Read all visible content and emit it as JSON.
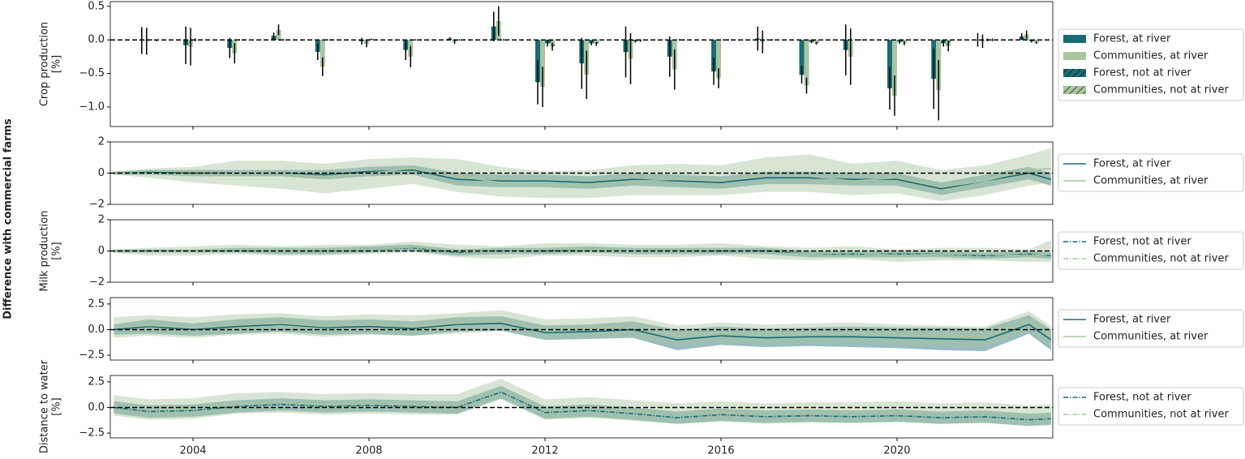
{
  "figure": {
    "ylabel": "Difference with commercial farms"
  },
  "chart_data": [
    {
      "type": "bar",
      "ylabel": "Crop production\n[%]",
      "x": [
        2003,
        2004,
        2005,
        2006,
        2007,
        2008,
        2009,
        2010,
        2011,
        2012,
        2013,
        2014,
        2015,
        2016,
        2017,
        2018,
        2019,
        2020,
        2021,
        2022,
        2023
      ],
      "xlim": [
        2002.12,
        2023.54
      ],
      "xticks": [
        2004,
        2008,
        2012,
        2016,
        2020
      ],
      "ylim": [
        -1.29,
        0.57
      ],
      "yticks": [
        {
          "value": 0.5,
          "label": "0.5"
        },
        {
          "value": 0,
          "label": "0.0"
        },
        {
          "value": -0.5,
          "label": "−0.5"
        },
        {
          "value": -1.0,
          "label": "−1.0"
        }
      ],
      "hline": 0,
      "series": [
        {
          "name": "Forest, at river",
          "color": "#1a6b73",
          "hatch": false,
          "values": [
            -0.01,
            -0.08,
            -0.12,
            0.06,
            -0.18,
            -0.02,
            -0.15,
            0.02,
            0.2,
            -0.63,
            -0.35,
            -0.18,
            -0.25,
            -0.47,
            0.02,
            -0.52,
            -0.15,
            -0.72,
            -0.58,
            0.0,
            0.05
          ],
          "errors": [
            0.2,
            0.28,
            0.15,
            0.05,
            0.12,
            0.05,
            0.15,
            0.02,
            0.22,
            0.33,
            0.38,
            0.38,
            0.3,
            0.2,
            0.18,
            0.13,
            0.38,
            0.32,
            0.45,
            0.1,
            0.05
          ]
        },
        {
          "name": "Communities, at river",
          "color": "#a8c5a0",
          "hatch": false,
          "values": [
            -0.02,
            -0.1,
            -0.2,
            0.15,
            -0.4,
            -0.06,
            -0.25,
            -0.03,
            0.28,
            -0.7,
            -0.52,
            -0.28,
            -0.44,
            -0.57,
            -0.03,
            -0.68,
            -0.25,
            -0.83,
            -0.75,
            -0.02,
            0.08
          ],
          "errors": [
            0.2,
            0.28,
            0.15,
            0.08,
            0.14,
            0.05,
            0.16,
            0.03,
            0.22,
            0.3,
            0.36,
            0.38,
            0.3,
            0.15,
            0.17,
            0.12,
            0.42,
            0.3,
            0.45,
            0.1,
            0.06
          ]
        },
        {
          "name": "Forest, not at river",
          "color": "#1a6b73",
          "hatch": true,
          "values": [
            0,
            0,
            0,
            0,
            0,
            0.01,
            0,
            0,
            0,
            -0.05,
            -0.05,
            -0.02,
            0,
            0,
            0,
            -0.03,
            0,
            -0.03,
            -0.05,
            0,
            -0.02
          ],
          "errors": [
            0.01,
            0.02,
            0.01,
            0.01,
            0.01,
            0.01,
            0.01,
            0.01,
            0.01,
            0.05,
            0.03,
            0.02,
            0.01,
            0.01,
            0.01,
            0.02,
            0.01,
            0.03,
            0.05,
            0.02,
            0.02
          ]
        },
        {
          "name": "Communities, not at river",
          "color": "#a8c5a0",
          "hatch": true,
          "values": [
            -0.01,
            0,
            0,
            0,
            0,
            0,
            0,
            0,
            0,
            -0.1,
            -0.06,
            -0.01,
            0,
            0,
            0,
            -0.05,
            0,
            -0.05,
            -0.09,
            0,
            -0.04
          ],
          "errors": [
            0.01,
            0.01,
            0.01,
            0.01,
            0.01,
            0.01,
            0.01,
            0.01,
            0.01,
            0.06,
            0.03,
            0.02,
            0.01,
            0.01,
            0.01,
            0.02,
            0.01,
            0.03,
            0.08,
            0.02,
            0.02
          ]
        }
      ]
    },
    {
      "type": "line",
      "x": [
        2002.2,
        2003,
        2004,
        2005,
        2006,
        2007,
        2008,
        2009,
        2010,
        2011,
        2012,
        2013,
        2014,
        2015,
        2016,
        2017,
        2018,
        2019,
        2020,
        2021,
        2022,
        2023,
        2023.5
      ],
      "xlim": [
        2002.12,
        2023.54
      ],
      "xticks": [
        2004,
        2008,
        2012,
        2016,
        2020
      ],
      "ylim": [
        -2,
        2
      ],
      "yticks": [
        2,
        0,
        {
          "value": -2,
          "label": "−2"
        }
      ],
      "hline": 0,
      "series": [
        {
          "name": "Forest, at river",
          "color": "#1a6b73",
          "linestyle": "solid",
          "values": [
            0,
            0.05,
            0,
            0,
            0,
            -0.1,
            0.1,
            0.2,
            -0.4,
            -0.5,
            -0.5,
            -0.6,
            -0.4,
            -0.5,
            -0.6,
            -0.3,
            -0.3,
            -0.4,
            -0.4,
            -1.0,
            -0.5,
            0,
            -0.4
          ],
          "lower": [
            -0.1,
            -0.1,
            -0.2,
            -0.2,
            -0.2,
            -0.4,
            -0.2,
            -0.1,
            -0.8,
            -0.9,
            -0.9,
            -1.0,
            -0.8,
            -0.9,
            -1.0,
            -0.7,
            -0.7,
            -0.8,
            -0.8,
            -1.4,
            -0.9,
            -0.4,
            -0.8
          ],
          "upper": [
            0.1,
            0.2,
            0.2,
            0.2,
            0.2,
            0.2,
            0.4,
            0.5,
            0,
            -0.1,
            -0.1,
            -0.2,
            0,
            -0.1,
            -0.2,
            0.1,
            0.1,
            0,
            0,
            -0.6,
            -0.1,
            0.4,
            0
          ]
        },
        {
          "name": "Communities, at river",
          "color": "#a8c5a0",
          "linestyle": "solid",
          "values": [
            0,
            0,
            -0.1,
            0,
            0,
            -0.3,
            0,
            0.3,
            -0.2,
            -0.6,
            -0.8,
            -0.7,
            -0.5,
            -0.4,
            -0.5,
            -0.1,
            -0.2,
            -0.5,
            -0.3,
            -0.9,
            -0.5,
            0.2,
            0.3
          ],
          "lower": [
            -0.1,
            -0.3,
            -0.6,
            -0.8,
            -1.0,
            -1.3,
            -1.0,
            -0.7,
            -1.2,
            -1.5,
            -1.6,
            -1.6,
            -1.4,
            -1.4,
            -1.4,
            -1.2,
            -1.2,
            -1.4,
            -1.3,
            -1.8,
            -1.4,
            -0.8,
            -0.6
          ],
          "upper": [
            0.1,
            0.3,
            0.4,
            0.8,
            0.8,
            0.6,
            0.9,
            1.0,
            0.9,
            0.4,
            0.1,
            0.2,
            0.5,
            0.6,
            0.5,
            1.0,
            1.2,
            0.6,
            0.8,
            0.2,
            0.5,
            1.2,
            1.6
          ]
        }
      ]
    },
    {
      "type": "line",
      "ylabel": "Milk production\n[%]",
      "x": [
        2002.2,
        2003,
        2004,
        2005,
        2006,
        2007,
        2008,
        2009,
        2010,
        2011,
        2012,
        2013,
        2014,
        2015,
        2016,
        2017,
        2018,
        2019,
        2020,
        2021,
        2022,
        2023,
        2023.5
      ],
      "xlim": [
        2002.12,
        2023.54
      ],
      "xticks": [
        2004,
        2008,
        2012,
        2016,
        2020
      ],
      "ylim": [
        -2,
        2
      ],
      "yticks": [
        2,
        0,
        {
          "value": -2,
          "label": "−2"
        }
      ],
      "hline": 0,
      "series": [
        {
          "name": "Forest, not at river",
          "color": "#1a6b73",
          "linestyle": "dashdot",
          "values": [
            0,
            0,
            0,
            0.05,
            0,
            0,
            0.1,
            0.2,
            -0.1,
            0,
            0,
            0.1,
            0,
            0,
            0,
            0,
            -0.2,
            -0.2,
            -0.2,
            -0.2,
            -0.3,
            -0.2,
            -0.3
          ],
          "lower": [
            -0.1,
            -0.1,
            -0.1,
            -0.1,
            -0.2,
            -0.2,
            -0.1,
            0,
            -0.3,
            -0.2,
            -0.2,
            -0.1,
            -0.2,
            -0.2,
            -0.2,
            -0.2,
            -0.4,
            -0.4,
            -0.4,
            -0.4,
            -0.5,
            -0.4,
            -0.5
          ],
          "upper": [
            0.1,
            0.1,
            0.1,
            0.2,
            0.2,
            0.2,
            0.3,
            0.4,
            0.1,
            0.2,
            0.2,
            0.3,
            0.2,
            0.2,
            0.2,
            0.2,
            0,
            0,
            0,
            0,
            -0.1,
            0,
            -0.1
          ]
        },
        {
          "name": "Communities, not at river",
          "color": "#a8c5a0",
          "linestyle": "dashdot",
          "values": [
            0,
            -0.05,
            0,
            0.1,
            0,
            0.05,
            0.1,
            0.25,
            0,
            -0.1,
            0.1,
            0.1,
            0,
            0,
            0.1,
            -0.1,
            -0.2,
            -0.1,
            -0.3,
            -0.2,
            -0.2,
            -0.3,
            -0.2
          ],
          "lower": [
            -0.1,
            -0.3,
            -0.3,
            -0.2,
            -0.3,
            -0.3,
            -0.2,
            -0.1,
            -0.4,
            -0.5,
            -0.3,
            -0.3,
            -0.4,
            -0.4,
            -0.3,
            -0.5,
            -0.6,
            -0.5,
            -0.7,
            -0.6,
            -0.6,
            -0.7,
            -0.7
          ],
          "upper": [
            0.1,
            0.2,
            0.3,
            0.4,
            0.3,
            0.4,
            0.4,
            0.6,
            0.4,
            0.3,
            0.5,
            0.5,
            0.4,
            0.4,
            0.5,
            0.3,
            0.2,
            0.3,
            0.1,
            0.2,
            0.2,
            0.1,
            0.7
          ]
        }
      ]
    },
    {
      "type": "line",
      "x": [
        2002.2,
        2003,
        2004,
        2005,
        2006,
        2007,
        2008,
        2009,
        2010,
        2011,
        2012,
        2013,
        2014,
        2015,
        2016,
        2017,
        2018,
        2019,
        2020,
        2021,
        2022,
        2023,
        2023.5
      ],
      "xlim": [
        2002.12,
        2023.54
      ],
      "xticks": [
        2004,
        2008,
        2012,
        2016,
        2020
      ],
      "ylim": [
        -2.97,
        3.12
      ],
      "yticks": [
        2.5,
        {
          "value": 0,
          "label": "0.0"
        },
        {
          "value": -2.5,
          "label": "−2.5"
        }
      ],
      "hline": 0,
      "series": [
        {
          "name": "Forest, at river",
          "color": "#1a6b73",
          "linestyle": "solid",
          "values": [
            0,
            0.3,
            0,
            0.3,
            0.5,
            0.2,
            0.3,
            0.1,
            0.5,
            0.6,
            -0.3,
            -0.2,
            0,
            -1.0,
            -0.6,
            -0.8,
            -0.7,
            -0.7,
            -0.8,
            -0.9,
            -1.0,
            0.5,
            -1.0
          ],
          "lower": [
            -0.5,
            -0.4,
            -0.6,
            -0.4,
            -0.2,
            -0.5,
            -0.4,
            -0.6,
            -0.2,
            -0.1,
            -1.0,
            -0.9,
            -0.8,
            -2.0,
            -1.5,
            -1.7,
            -1.6,
            -1.7,
            -1.8,
            -2.0,
            -2.1,
            -0.4,
            -2.0
          ],
          "upper": [
            0.5,
            1.0,
            0.6,
            1.0,
            1.2,
            0.9,
            1.0,
            0.8,
            1.2,
            1.3,
            0.4,
            0.5,
            0.8,
            0,
            0.3,
            0.1,
            0.2,
            0.3,
            0.2,
            0.2,
            0.1,
            1.4,
            0
          ]
        },
        {
          "name": "Communities, at river",
          "color": "#a8c5a0",
          "linestyle": "solid",
          "values": [
            0.2,
            0.4,
            0.2,
            0.5,
            0.6,
            0.3,
            0.5,
            0.4,
            0.6,
            0.9,
            0,
            0.1,
            0.3,
            -0.6,
            -0.3,
            -0.5,
            -0.4,
            -0.3,
            -0.5,
            -0.6,
            -0.7,
            0.8,
            -0.7
          ],
          "lower": [
            -0.8,
            -0.6,
            -0.8,
            -0.5,
            -0.4,
            -0.7,
            -0.5,
            -0.6,
            -0.4,
            -0.1,
            -1.0,
            -0.9,
            -0.7,
            -1.6,
            -1.3,
            -1.5,
            -1.4,
            -1.3,
            -1.5,
            -1.6,
            -1.7,
            -0.2,
            -1.7
          ],
          "upper": [
            1.2,
            1.4,
            1.2,
            1.5,
            1.6,
            1.3,
            1.5,
            1.4,
            1.6,
            1.9,
            1.0,
            1.1,
            1.3,
            0.4,
            0.7,
            0.5,
            0.6,
            0.7,
            0.5,
            0.4,
            0.3,
            1.8,
            0.3
          ]
        }
      ]
    },
    {
      "type": "line",
      "ylabel": "Distance to water\n[%]",
      "x": [
        2002.2,
        2003,
        2004,
        2005,
        2006,
        2007,
        2008,
        2009,
        2010,
        2011,
        2012,
        2013,
        2014,
        2015,
        2016,
        2017,
        2018,
        2019,
        2020,
        2021,
        2022,
        2023,
        2023.5
      ],
      "xlim": [
        2002.12,
        2023.54
      ],
      "xticks": [
        2004,
        2008,
        2012,
        2016,
        2020
      ],
      "ylim": [
        -2.97,
        3.12
      ],
      "yticks": [
        2.5,
        {
          "value": 0,
          "label": "0.0"
        },
        {
          "value": -2.5,
          "label": "−2.5"
        }
      ],
      "hline": 0,
      "series": [
        {
          "name": "Forest, not at river",
          "color": "#1a6b73",
          "linestyle": "dashdot",
          "values": [
            0,
            -0.4,
            -0.3,
            0.1,
            0.3,
            0.1,
            0.2,
            0.1,
            0,
            1.5,
            -0.5,
            -0.3,
            -0.6,
            -1.0,
            -0.7,
            -0.9,
            -0.8,
            -0.9,
            -0.8,
            -1.0,
            -0.9,
            -1.2,
            -1.1
          ],
          "lower": [
            -0.6,
            -1.0,
            -0.9,
            -0.5,
            -0.3,
            -0.5,
            -0.4,
            -0.5,
            -0.6,
            0.9,
            -1.1,
            -0.9,
            -1.2,
            -1.6,
            -1.3,
            -1.5,
            -1.4,
            -1.5,
            -1.4,
            -1.6,
            -1.5,
            -1.8,
            -1.7
          ],
          "upper": [
            0.6,
            0.2,
            0.3,
            0.7,
            0.9,
            0.7,
            0.8,
            0.7,
            0.6,
            2.1,
            0.1,
            0.3,
            0,
            -0.4,
            -0.1,
            -0.3,
            -0.2,
            -0.3,
            -0.2,
            -0.4,
            -0.3,
            -0.6,
            -0.5
          ]
        },
        {
          "name": "Communities, not at river",
          "color": "#a8c5a0",
          "linestyle": "dashdot",
          "values": [
            0.2,
            -0.2,
            -0.1,
            0.4,
            0.5,
            0.3,
            0.4,
            0.3,
            0.3,
            1.8,
            -0.2,
            0,
            -0.3,
            -0.6,
            -0.4,
            -0.6,
            -0.5,
            -0.5,
            -0.4,
            -0.6,
            -0.5,
            -0.8,
            -0.7
          ],
          "lower": [
            -0.8,
            -1.2,
            -1.1,
            -0.6,
            -0.5,
            -0.7,
            -0.6,
            -0.7,
            -0.7,
            0.8,
            -1.2,
            -1.0,
            -1.3,
            -1.6,
            -1.4,
            -1.6,
            -1.5,
            -1.5,
            -1.4,
            -1.6,
            -1.5,
            -1.8,
            -1.7
          ],
          "upper": [
            1.2,
            0.8,
            0.9,
            1.4,
            1.5,
            1.3,
            1.4,
            1.3,
            1.3,
            2.8,
            0.8,
            1.0,
            0.7,
            0.4,
            0.6,
            0.4,
            0.5,
            0.5,
            0.6,
            0.4,
            0.5,
            0.2,
            0.3
          ]
        }
      ]
    }
  ]
}
